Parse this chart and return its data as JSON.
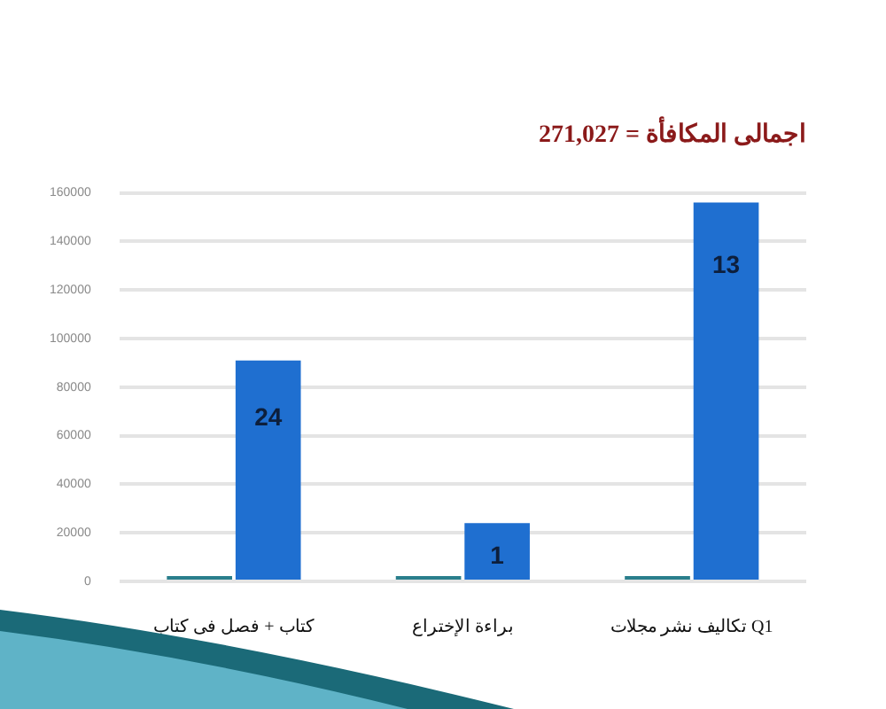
{
  "chart_data": {
    "type": "bar",
    "title": "اجمالى المكافأة = 271,027",
    "categories": [
      "كتاب + فصل فى كتاب",
      "براءة الإختراع",
      "تكاليف نشر مجلات Q1"
    ],
    "series": [
      {
        "color": "#2a7f8c",
        "values": [
          0,
          0,
          0
        ]
      },
      {
        "color": "#1f6fd0",
        "values": [
          91000,
          24000,
          156000
        ]
      }
    ],
    "ylim": [
      0,
      160000
    ],
    "yticks": [
      0,
      20000,
      40000,
      60000,
      80000,
      100000,
      120000,
      140000,
      160000
    ],
    "annotations": [
      {
        "text": "24",
        "x": "كتاب + فصل فى كتاب",
        "y": 67000
      },
      {
        "text": "1",
        "x": "براءة الإختراع",
        "y": 10000
      },
      {
        "text": "13",
        "x": "تكاليف نشر مجلات Q1",
        "y": 130000
      }
    ],
    "grid": "y",
    "legend": false
  }
}
